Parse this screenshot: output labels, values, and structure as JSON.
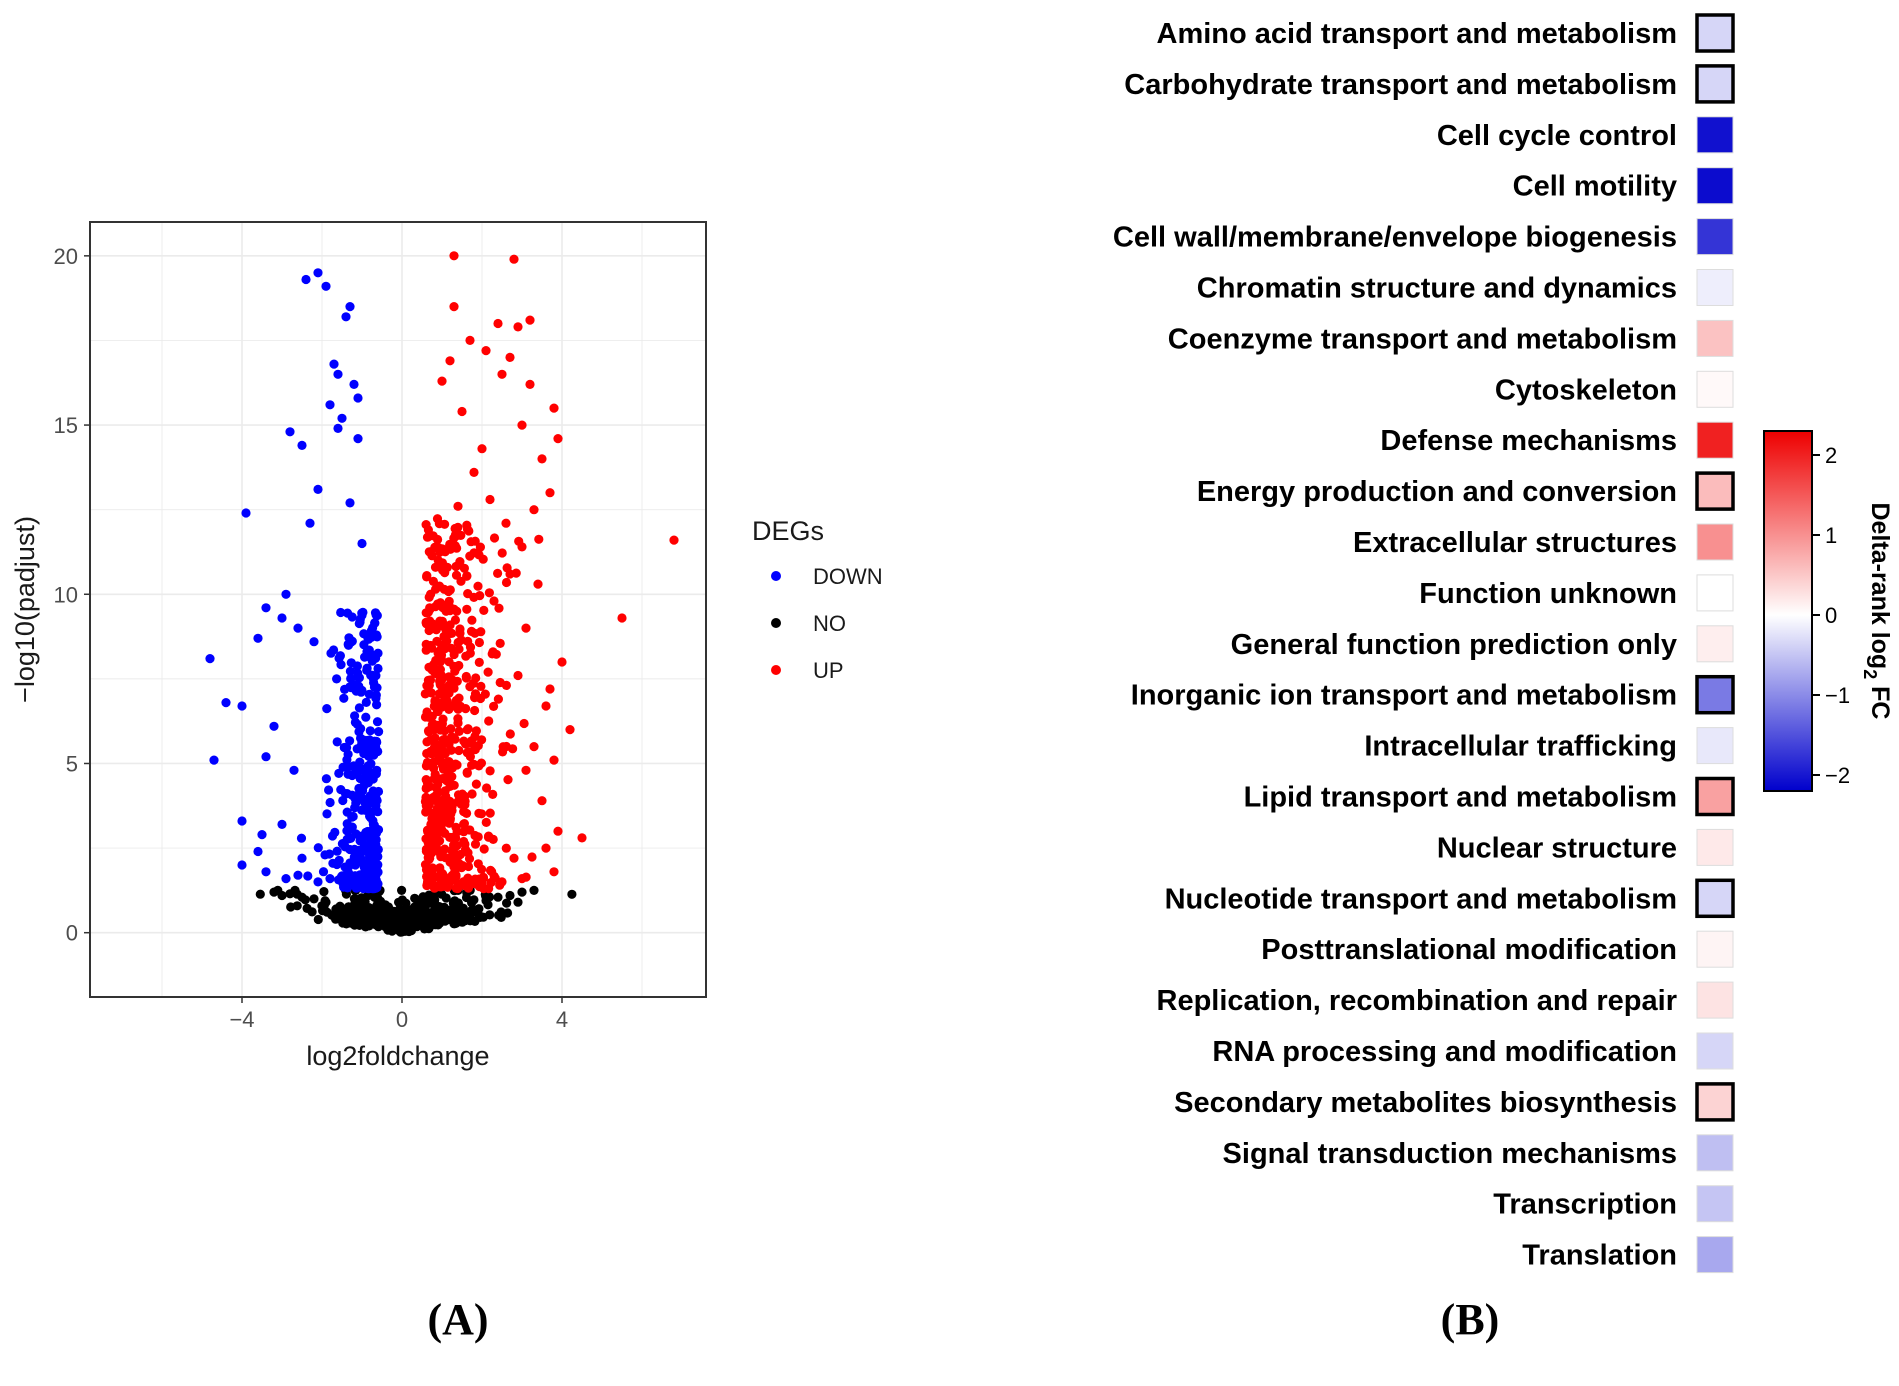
{
  "panels": {
    "a_label": "(A)",
    "b_label": "(B)"
  },
  "chart_data": [
    {
      "panel": "A",
      "type": "scatter",
      "title": "",
      "xlabel": "log2foldchange",
      "ylabel": "−log10(padjust)",
      "xlim": [
        -7.8,
        7.6
      ],
      "ylim": [
        -1.9,
        21
      ],
      "xticks": [
        -4,
        0,
        4
      ],
      "xtick_labels": [
        "−4",
        "0",
        "4"
      ],
      "yticks": [
        0,
        5,
        10,
        15,
        20
      ],
      "ytick_labels": [
        "0",
        "5",
        "10",
        "15",
        "20"
      ],
      "grid": true,
      "legend": {
        "title": "DEGs",
        "placement": "right",
        "entries": [
          {
            "label": "DOWN",
            "color": "#0000ff"
          },
          {
            "label": "NO",
            "color": "#000000"
          },
          {
            "label": "UP",
            "color": "#ff0000"
          }
        ]
      },
      "thresholds": {
        "log2fc": 0.58,
        "neg_log10_padj": 1.3
      },
      "series": [
        {
          "name": "DOWN",
          "color": "#0000ff",
          "points": [
            [
              -2.1,
              19.5
            ],
            [
              -2.4,
              19.3
            ],
            [
              -1.9,
              19.1
            ],
            [
              -1.3,
              18.5
            ],
            [
              -1.4,
              18.2
            ],
            [
              -1.7,
              16.8
            ],
            [
              -1.6,
              16.5
            ],
            [
              -1.2,
              16.2
            ],
            [
              -1.1,
              15.8
            ],
            [
              -1.8,
              15.6
            ],
            [
              -1.5,
              15.2
            ],
            [
              -2.8,
              14.8
            ],
            [
              -1.6,
              14.9
            ],
            [
              -2.5,
              14.4
            ],
            [
              -1.1,
              14.6
            ],
            [
              -3.9,
              12.4
            ],
            [
              -2.1,
              13.1
            ],
            [
              -1.3,
              12.7
            ],
            [
              -2.3,
              12.1
            ],
            [
              -1.0,
              11.5
            ],
            [
              -2.9,
              10.0
            ],
            [
              -3.4,
              9.6
            ],
            [
              -3.0,
              9.3
            ],
            [
              -2.6,
              9.0
            ],
            [
              -3.6,
              8.7
            ],
            [
              -4.8,
              8.1
            ],
            [
              -2.2,
              8.6
            ],
            [
              -4.4,
              6.8
            ],
            [
              -4.0,
              6.7
            ],
            [
              -3.2,
              6.1
            ],
            [
              -4.7,
              5.1
            ],
            [
              -3.4,
              5.2
            ],
            [
              -2.7,
              4.8
            ],
            [
              -4.0,
              3.3
            ],
            [
              -3.0,
              3.2
            ],
            [
              -3.5,
              2.9
            ],
            [
              -3.6,
              2.4
            ],
            [
              -2.5,
              2.2
            ],
            [
              -4.0,
              2.0
            ],
            [
              -3.4,
              1.8
            ],
            [
              -2.9,
              1.6
            ],
            [
              -2.6,
              1.7
            ],
            [
              -2.1,
              1.5
            ],
            [
              -1.8,
              1.6
            ]
          ]
        },
        {
          "name": "UP",
          "color": "#ff0000",
          "points": [
            [
              1.3,
              20.0
            ],
            [
              2.8,
              19.9
            ],
            [
              1.3,
              18.5
            ],
            [
              2.4,
              18.0
            ],
            [
              2.9,
              17.9
            ],
            [
              3.2,
              18.1
            ],
            [
              1.7,
              17.5
            ],
            [
              2.1,
              17.2
            ],
            [
              2.7,
              17.0
            ],
            [
              1.2,
              16.9
            ],
            [
              2.5,
              16.5
            ],
            [
              3.2,
              16.2
            ],
            [
              3.8,
              15.5
            ],
            [
              1.0,
              16.3
            ],
            [
              3.0,
              15.0
            ],
            [
              1.5,
              15.4
            ],
            [
              3.9,
              14.6
            ],
            [
              2.0,
              14.3
            ],
            [
              3.5,
              14.0
            ],
            [
              1.8,
              13.6
            ],
            [
              3.7,
              13.0
            ],
            [
              2.2,
              12.8
            ],
            [
              3.3,
              12.5
            ],
            [
              1.4,
              12.6
            ],
            [
              2.6,
              12.1
            ],
            [
              6.8,
              11.6
            ],
            [
              3.0,
              11.4
            ],
            [
              1.9,
              11.2
            ],
            [
              2.7,
              10.6
            ],
            [
              3.4,
              10.3
            ],
            [
              5.5,
              9.3
            ],
            [
              2.3,
              9.8
            ],
            [
              3.1,
              9.0
            ],
            [
              4.0,
              8.0
            ],
            [
              2.9,
              7.6
            ],
            [
              3.7,
              7.2
            ],
            [
              3.6,
              6.7
            ],
            [
              4.2,
              6.0
            ],
            [
              3.8,
              5.1
            ],
            [
              3.3,
              5.5
            ],
            [
              3.1,
              4.8
            ],
            [
              3.5,
              3.9
            ],
            [
              4.5,
              2.8
            ],
            [
              3.9,
              3.0
            ],
            [
              3.6,
              2.5
            ],
            [
              2.8,
              2.2
            ],
            [
              3.8,
              1.8
            ],
            [
              3.0,
              1.6
            ],
            [
              2.5,
              1.5
            ],
            [
              2.0,
              1.6
            ]
          ]
        },
        {
          "name": "NO",
          "color": "#000000",
          "points": [
            [
              -3.2,
              1.2
            ],
            [
              -3.0,
              1.1
            ],
            [
              -2.8,
              1.15
            ],
            [
              -2.5,
              1.05
            ],
            [
              -2.2,
              1.0
            ],
            [
              -1.9,
              0.9
            ],
            [
              2.1,
              0.95
            ],
            [
              2.4,
              1.05
            ],
            [
              2.7,
              1.1
            ],
            [
              3.0,
              1.2
            ],
            [
              3.3,
              1.25
            ],
            [
              2.9,
              0.9
            ]
          ]
        }
      ]
    },
    {
      "panel": "B",
      "type": "heatmap",
      "title": "",
      "colorbar": {
        "title": "Delta-rank log",
        "title_sub": "2",
        "title_suffix": " FC",
        "min": -2.2,
        "max": 2.3,
        "ticks": [
          2,
          1,
          0,
          -1,
          -2
        ],
        "tick_labels": [
          "2",
          "1",
          "0",
          "−1",
          "−2"
        ],
        "colors": {
          "low": "#0000cc",
          "mid": "#ffffff",
          "high": "#ee0000"
        }
      },
      "categories": [
        "Amino acid transport and metabolism",
        "Carbohydrate transport and metabolism",
        "Cell cycle control",
        "Cell motility",
        "Cell wall/membrane/envelope biogenesis",
        "Chromatin structure and dynamics",
        "Coenzyme transport and metabolism",
        "Cytoskeleton",
        "Defense mechanisms",
        "Energy production and conversion",
        "Extracellular structures",
        "Function unknown",
        "General function prediction only",
        "Inorganic ion transport and metabolism",
        "Intracellular trafficking",
        "Lipid transport and metabolism",
        "Nuclear structure",
        "Nucleotide transport and metabolism",
        "Posttranslational modification",
        "Replication, recombination and repair",
        "RNA processing and modification",
        "Secondary metabolites biosynthesis",
        "Signal transduction mechanisms",
        "Transcription",
        "Translation"
      ],
      "values": [
        -0.35,
        -0.35,
        -2.05,
        -2.1,
        -1.75,
        -0.15,
        0.55,
        0.05,
        2.0,
        0.6,
        1.0,
        0.0,
        0.15,
        -1.15,
        -0.2,
        0.85,
        0.2,
        -0.35,
        0.1,
        0.25,
        -0.35,
        0.4,
        -0.55,
        -0.5,
        -0.75
      ],
      "highlighted": [
        true,
        true,
        false,
        false,
        false,
        false,
        false,
        false,
        false,
        true,
        false,
        false,
        false,
        true,
        false,
        true,
        false,
        true,
        false,
        false,
        false,
        true,
        false,
        false,
        false
      ]
    }
  ]
}
